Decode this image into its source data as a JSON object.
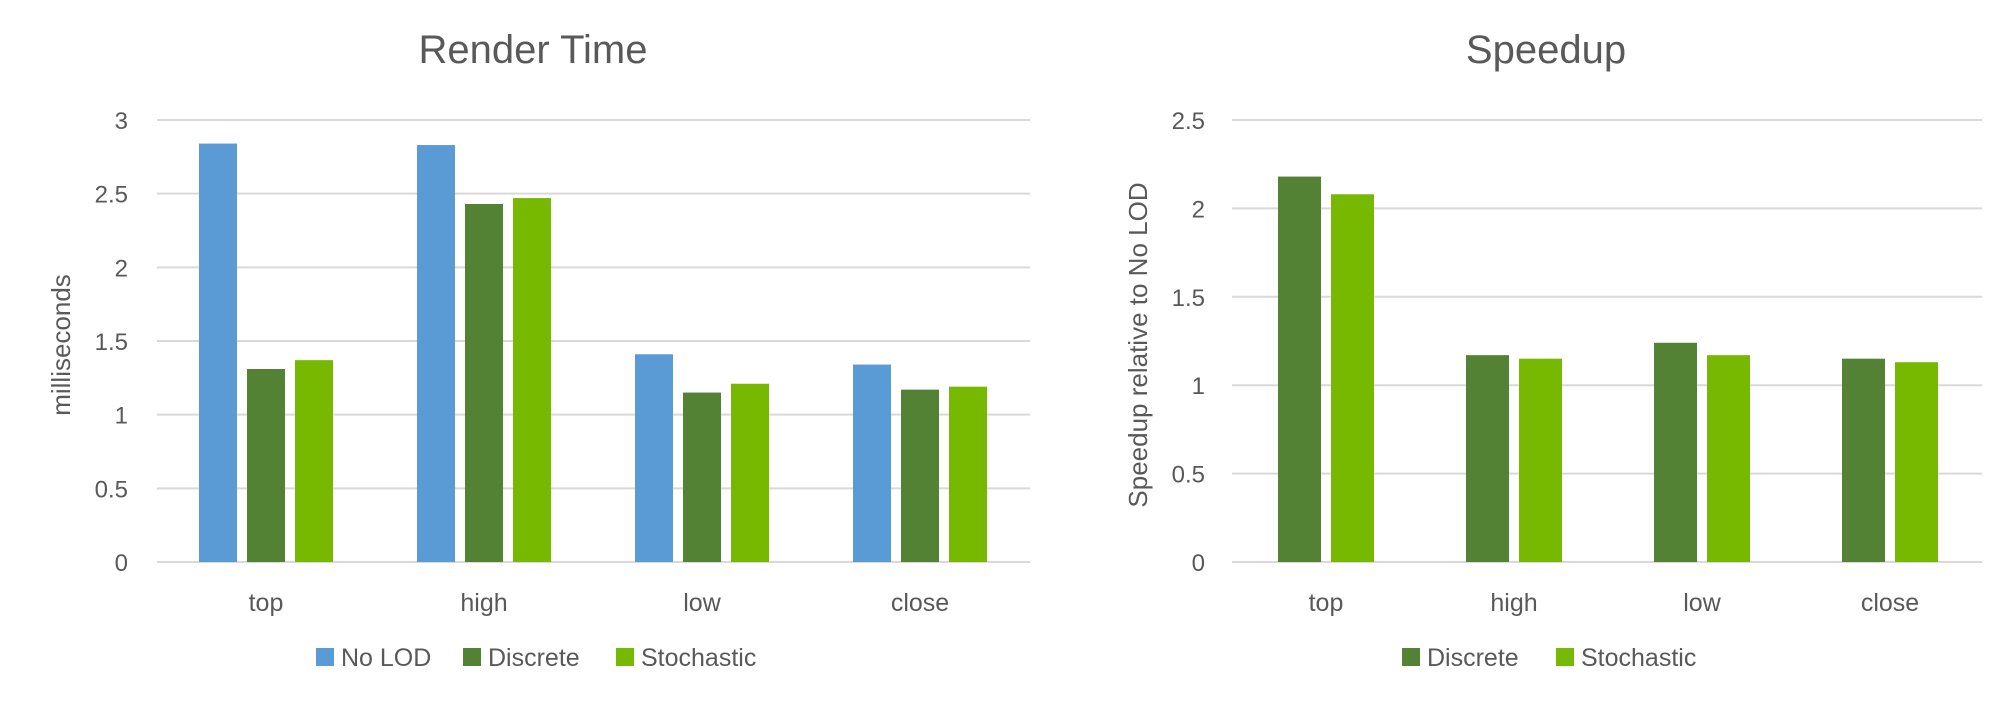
{
  "colors": {
    "no_lod": "#5b9bd5",
    "discrete": "#548235",
    "stochastic": "#76b900",
    "grid": "#d9d9d9",
    "text": "#595959"
  },
  "chart_data": [
    {
      "type": "bar",
      "title": "Render Time",
      "ylabel": "milliseconds",
      "xlabel": "",
      "categories": [
        "top",
        "high",
        "low",
        "close"
      ],
      "ylim": [
        0,
        3
      ],
      "yticks": [
        "0",
        "0.5",
        "1",
        "1.5",
        "2",
        "2.5",
        "3"
      ],
      "legend_position": "bottom",
      "series": [
        {
          "name": "No LOD",
          "color": "#5b9bd5",
          "values": [
            2.84,
            2.83,
            1.41,
            1.34
          ]
        },
        {
          "name": "Discrete",
          "color": "#548235",
          "values": [
            1.31,
            2.43,
            1.15,
            1.17
          ]
        },
        {
          "name": "Stochastic",
          "color": "#76b900",
          "values": [
            1.37,
            2.47,
            1.21,
            1.19
          ]
        }
      ]
    },
    {
      "type": "bar",
      "title": "Speedup",
      "ylabel": "Speedup relative to No LOD",
      "xlabel": "",
      "categories": [
        "top",
        "high",
        "low",
        "close"
      ],
      "ylim": [
        0,
        2.5
      ],
      "yticks": [
        "0",
        "0.5",
        "1",
        "1.5",
        "2",
        "2.5"
      ],
      "legend_position": "bottom",
      "series": [
        {
          "name": "Discrete",
          "color": "#548235",
          "values": [
            2.18,
            1.17,
            1.24,
            1.15
          ]
        },
        {
          "name": "Stochastic",
          "color": "#76b900",
          "values": [
            2.08,
            1.15,
            1.17,
            1.13
          ]
        }
      ]
    }
  ]
}
